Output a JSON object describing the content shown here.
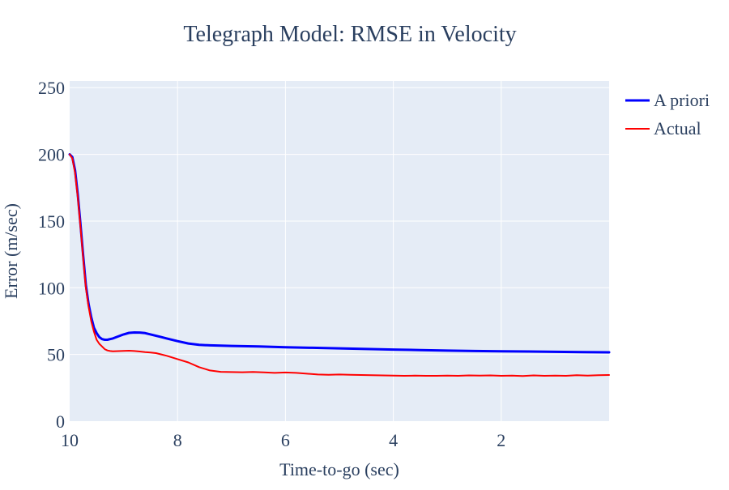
{
  "chart_data": {
    "type": "line",
    "title": "Telegraph Model: RMSE in Velocity",
    "xlabel": "Time-to-go (sec)",
    "ylabel": "Error (m/sec)",
    "x_reversed": true,
    "xlim": [
      10,
      0
    ],
    "ylim": [
      0,
      255
    ],
    "xticks": [
      10,
      8,
      6,
      4,
      2
    ],
    "yticks": [
      0,
      50,
      100,
      150,
      200,
      250
    ],
    "grid": true,
    "legend_position": "right",
    "plot_background": "#e5ecf6",
    "series": [
      {
        "name": "A priori",
        "color": "#0000ff",
        "line_width": 3,
        "x": [
          10,
          9.95,
          9.9,
          9.85,
          9.8,
          9.75,
          9.7,
          9.65,
          9.6,
          9.55,
          9.5,
          9.45,
          9.4,
          9.35,
          9.3,
          9.25,
          9.2,
          9.1,
          9.0,
          8.9,
          8.8,
          8.7,
          8.6,
          8.5,
          8.4,
          8.3,
          8.2,
          8.0,
          7.8,
          7.6,
          7.4,
          7.2,
          7.0,
          6.5,
          6.0,
          5.5,
          5.0,
          4.5,
          4.0,
          3.5,
          3.0,
          2.5,
          2.0,
          1.5,
          1.0,
          0.5,
          0.0
        ],
        "y": [
          200,
          198,
          188,
          170,
          148,
          124,
          102,
          88,
          78,
          70,
          66,
          63,
          61.5,
          61,
          61,
          61.5,
          62,
          63.5,
          65,
          66.2,
          66.5,
          66.4,
          66,
          65,
          64,
          63,
          62,
          60,
          58.2,
          57.2,
          56.8,
          56.6,
          56.4,
          56,
          55.4,
          55,
          54.6,
          54.1,
          53.7,
          53.3,
          52.9,
          52.6,
          52.4,
          52.2,
          52.0,
          51.8,
          51.6
        ]
      },
      {
        "name": "Actual",
        "color": "#ff0000",
        "line_width": 2,
        "x": [
          10,
          9.95,
          9.9,
          9.85,
          9.8,
          9.75,
          9.7,
          9.65,
          9.6,
          9.55,
          9.5,
          9.45,
          9.4,
          9.35,
          9.3,
          9.25,
          9.2,
          9.1,
          9.0,
          8.9,
          8.8,
          8.7,
          8.6,
          8.5,
          8.4,
          8.3,
          8.2,
          8.0,
          7.8,
          7.6,
          7.4,
          7.2,
          7.0,
          6.8,
          6.6,
          6.4,
          6.2,
          6.0,
          5.8,
          5.6,
          5.4,
          5.2,
          5.0,
          4.8,
          4.6,
          4.4,
          4.2,
          4.0,
          3.8,
          3.6,
          3.4,
          3.2,
          3.0,
          2.8,
          2.6,
          2.4,
          2.2,
          2.0,
          1.8,
          1.6,
          1.4,
          1.2,
          1.0,
          0.8,
          0.6,
          0.4,
          0.2,
          0.0
        ],
        "y": [
          200,
          197,
          186,
          168,
          146,
          122,
          100,
          86,
          75,
          67,
          61,
          58,
          56,
          54,
          53,
          52.6,
          52.4,
          52.5,
          52.7,
          52.8,
          52.6,
          52.2,
          51.8,
          51.5,
          51,
          50,
          49,
          46.5,
          44,
          40.5,
          38,
          37,
          36.8,
          36.7,
          36.9,
          36.6,
          36.2,
          36.5,
          36.2,
          35.6,
          35,
          34.8,
          35,
          34.8,
          34.6,
          34.5,
          34.3,
          34.2,
          34.0,
          34.1,
          34.0,
          34.0,
          34.2,
          34.0,
          34.3,
          34.1,
          34.3,
          34.0,
          34.2,
          33.8,
          34.3,
          34.0,
          34.1,
          34.0,
          34.4,
          34.2,
          34.4,
          34.6
        ]
      }
    ]
  }
}
